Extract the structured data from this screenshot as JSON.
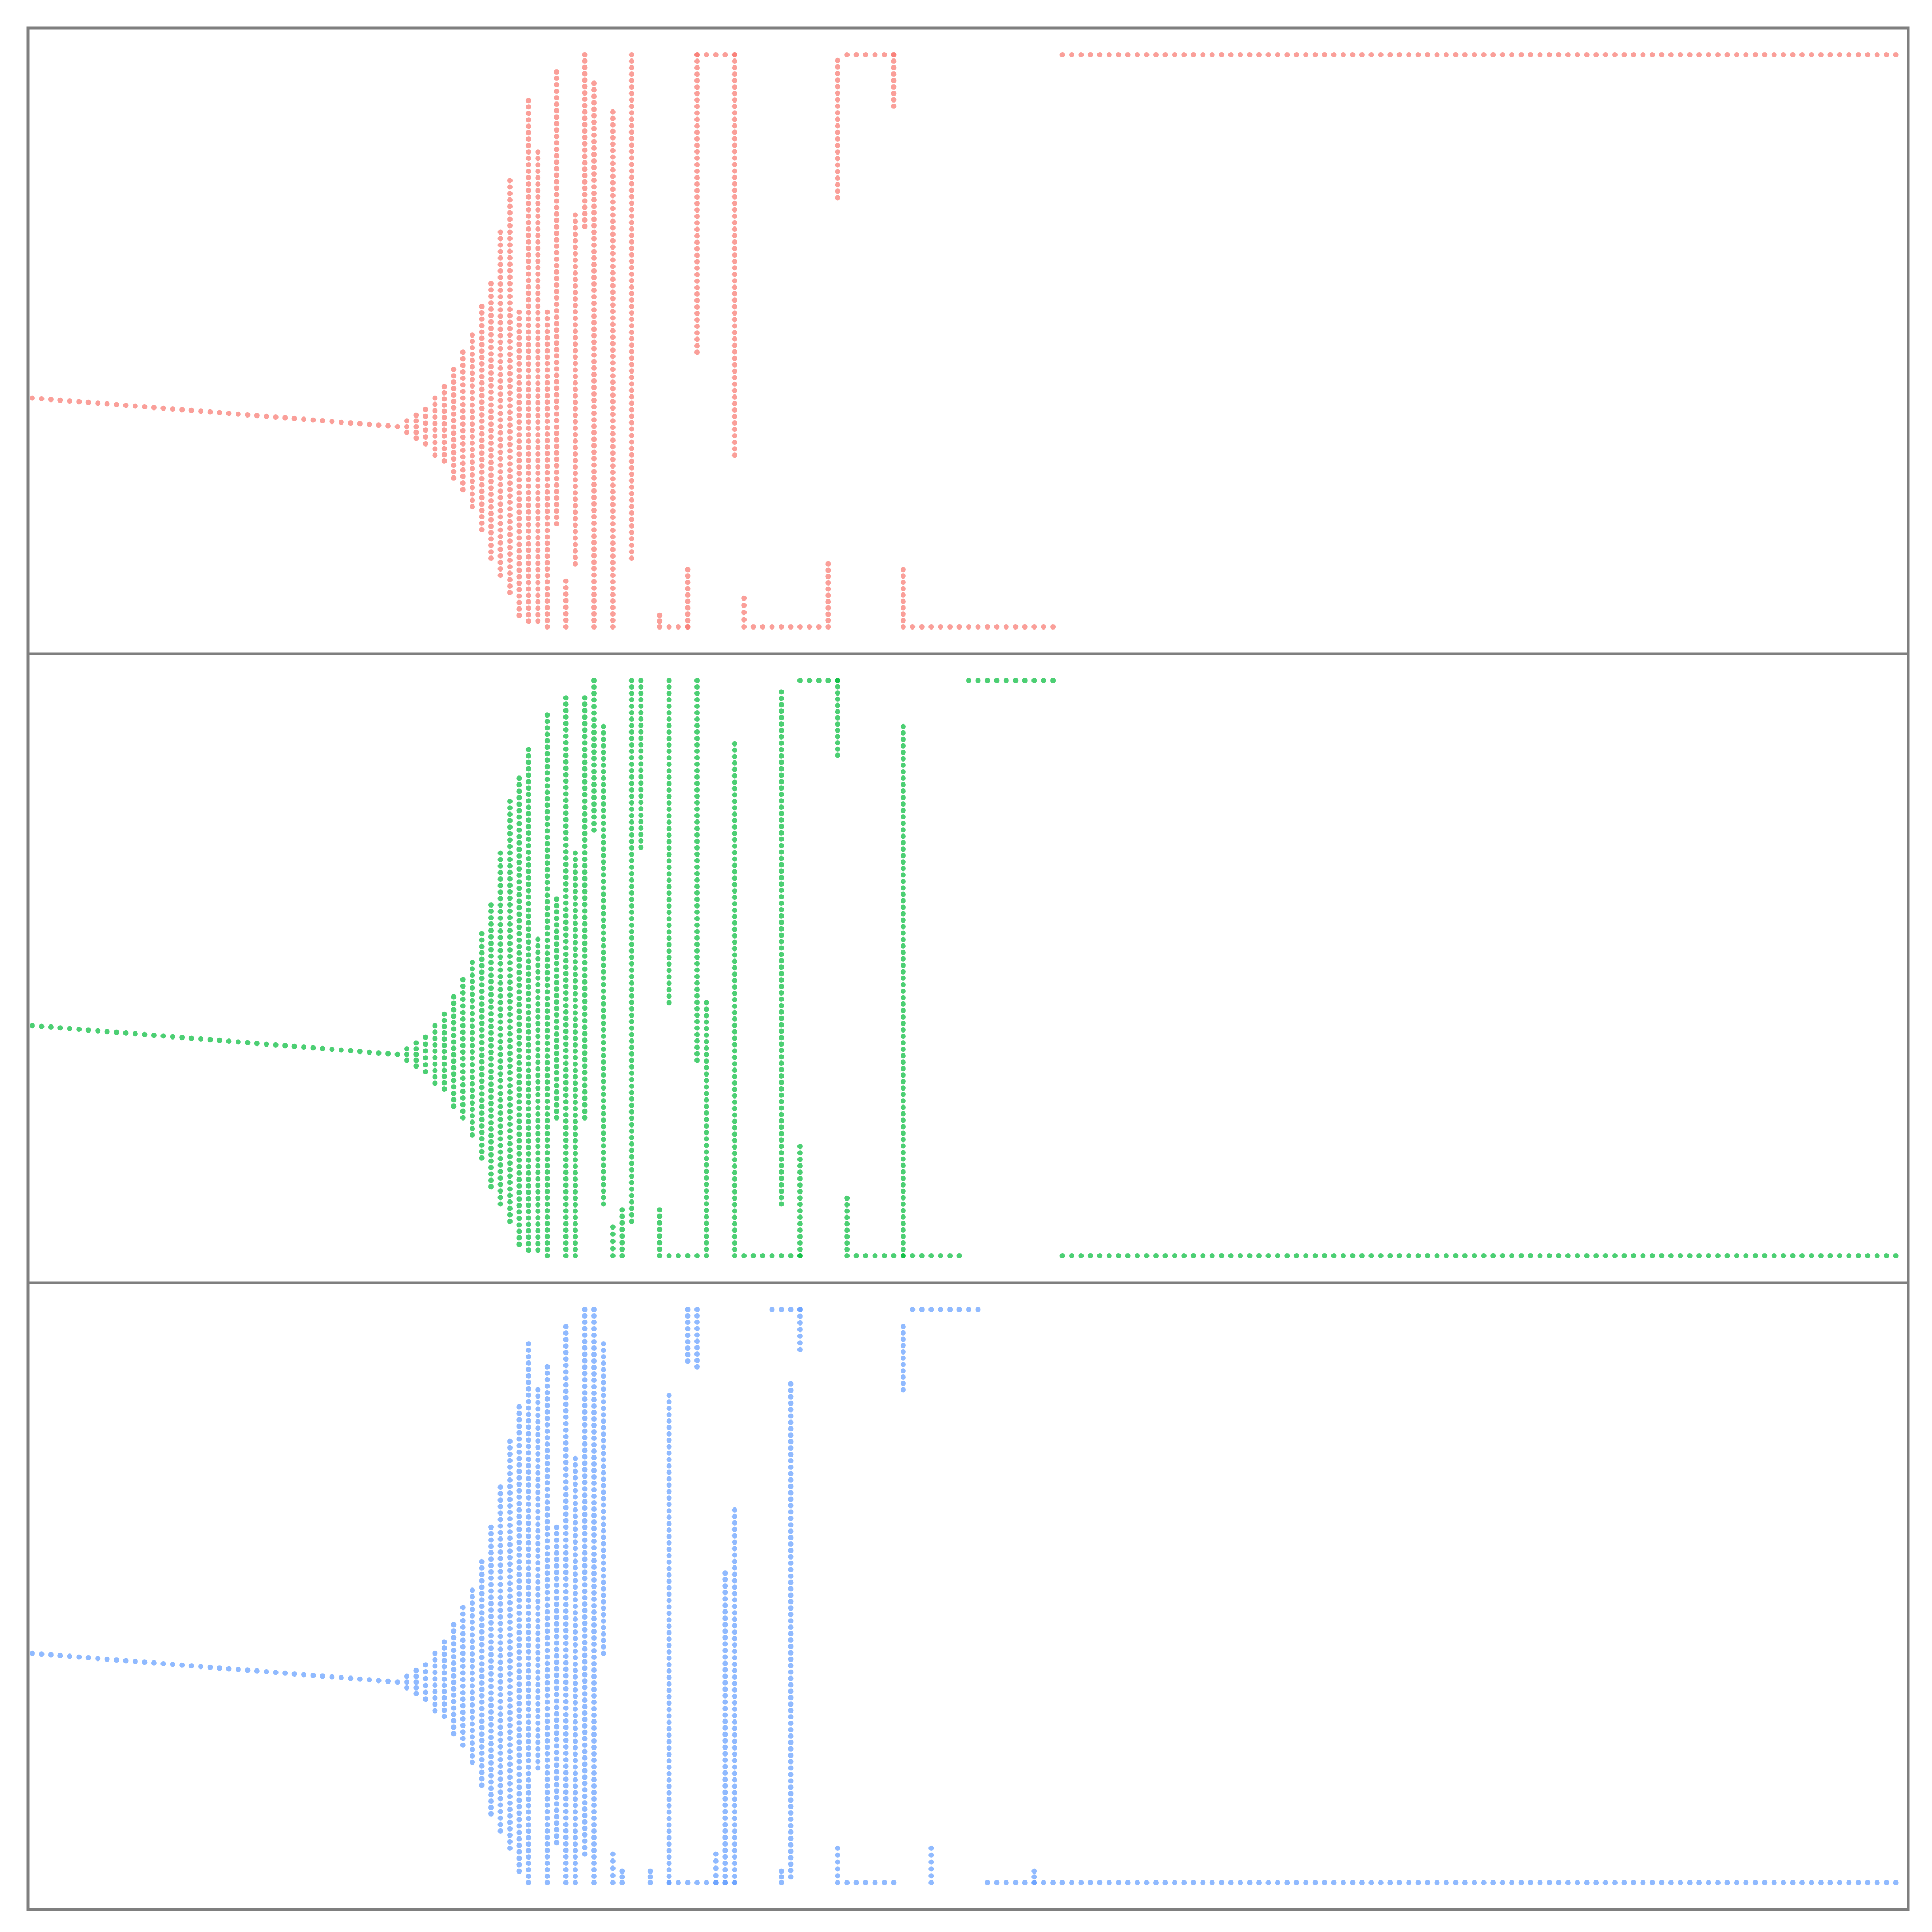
{
  "chart_data": [
    {
      "type": "scatter",
      "panel": "top",
      "color": "#F8766D",
      "title": "",
      "xlabel": "",
      "ylabel": "",
      "xlim": [
        0,
        200
      ],
      "ylim": [
        0,
        1
      ],
      "grid": false,
      "legend": "none",
      "tail": {
        "x_start": 0,
        "x_end": 39,
        "y_start": 0.4,
        "y_end": 0.35
      },
      "columns": [
        {
          "x": 40,
          "lo": 0.34,
          "hi": 0.36
        },
        {
          "x": 41,
          "lo": 0.33,
          "hi": 0.37
        },
        {
          "x": 42,
          "lo": 0.32,
          "hi": 0.38
        },
        {
          "x": 43,
          "lo": 0.3,
          "hi": 0.4
        },
        {
          "x": 44,
          "lo": 0.29,
          "hi": 0.42
        },
        {
          "x": 45,
          "lo": 0.26,
          "hi": 0.45
        },
        {
          "x": 46,
          "lo": 0.24,
          "hi": 0.48
        },
        {
          "x": 47,
          "lo": 0.21,
          "hi": 0.51
        },
        {
          "x": 48,
          "lo": 0.17,
          "hi": 0.56
        },
        {
          "x": 49,
          "lo": 0.12,
          "hi": 0.6
        },
        {
          "x": 50,
          "lo": 0.09,
          "hi": 0.69
        },
        {
          "x": 51,
          "lo": 0.06,
          "hi": 0.78
        },
        {
          "x": 52,
          "lo": 0.02,
          "hi": 0.55
        },
        {
          "x": 53,
          "lo": 0.01,
          "hi": 0.92
        },
        {
          "x": 54,
          "lo": 0.01,
          "hi": 0.83
        },
        {
          "x": 55,
          "lo": 0.0,
          "hi": 0.55
        },
        {
          "x": 56,
          "lo": 0.18,
          "hi": 0.97
        },
        {
          "x": 57,
          "lo": 0.0,
          "hi": 0.08
        },
        {
          "x": 58,
          "lo": 0.11,
          "hi": 0.72
        },
        {
          "x": 59,
          "lo": 0.7,
          "hi": 1.0
        },
        {
          "x": 60,
          "lo": 0.0,
          "hi": 0.95
        },
        {
          "x": 62,
          "lo": 0.0,
          "hi": 0.9
        },
        {
          "x": 64,
          "lo": 0.12,
          "hi": 1.0
        },
        {
          "x": 67,
          "lo": 0.0,
          "hi": 0.02
        },
        {
          "x": 70,
          "lo": 0.0,
          "hi": 0.1
        },
        {
          "x": 71,
          "lo": 0.48,
          "hi": 1.0
        },
        {
          "x": 75,
          "lo": 0.3,
          "hi": 1.0
        },
        {
          "x": 76,
          "lo": 0.0,
          "hi": 0.05
        },
        {
          "x": 85,
          "lo": 0.0,
          "hi": 0.11
        },
        {
          "x": 86,
          "lo": 0.75,
          "hi": 0.99
        },
        {
          "x": 92,
          "lo": 0.91,
          "hi": 1.0
        },
        {
          "x": 93,
          "lo": 0.0,
          "hi": 0.1
        }
      ],
      "flat": [
        {
          "x_start": 68,
          "x_end": 70,
          "y": 0.0
        },
        {
          "x_start": 71,
          "x_end": 75,
          "y": 1.0
        },
        {
          "x_start": 77,
          "x_end": 84,
          "y": 0.0
        },
        {
          "x_start": 87,
          "x_end": 92,
          "y": 1.0
        },
        {
          "x_start": 94,
          "x_end": 109,
          "y": 0.0
        },
        {
          "x_start": 110,
          "x_end": 199,
          "y": 1.0
        }
      ]
    },
    {
      "type": "scatter",
      "panel": "middle",
      "color": "#00BA38",
      "title": "",
      "xlabel": "",
      "ylabel": "",
      "xlim": [
        0,
        200
      ],
      "ylim": [
        0,
        1
      ],
      "grid": false,
      "legend": "none",
      "tail": {
        "x_start": 0,
        "x_end": 39,
        "y_start": 0.4,
        "y_end": 0.35
      },
      "columns": [
        {
          "x": 40,
          "lo": 0.34,
          "hi": 0.36
        },
        {
          "x": 41,
          "lo": 0.33,
          "hi": 0.37
        },
        {
          "x": 42,
          "lo": 0.32,
          "hi": 0.38
        },
        {
          "x": 43,
          "lo": 0.3,
          "hi": 0.4
        },
        {
          "x": 44,
          "lo": 0.29,
          "hi": 0.42
        },
        {
          "x": 45,
          "lo": 0.26,
          "hi": 0.45
        },
        {
          "x": 46,
          "lo": 0.24,
          "hi": 0.48
        },
        {
          "x": 47,
          "lo": 0.21,
          "hi": 0.51
        },
        {
          "x": 48,
          "lo": 0.17,
          "hi": 0.56
        },
        {
          "x": 49,
          "lo": 0.12,
          "hi": 0.61
        },
        {
          "x": 50,
          "lo": 0.09,
          "hi": 0.7
        },
        {
          "x": 51,
          "lo": 0.06,
          "hi": 0.79
        },
        {
          "x": 52,
          "lo": 0.02,
          "hi": 0.83
        },
        {
          "x": 53,
          "lo": 0.01,
          "hi": 0.88
        },
        {
          "x": 54,
          "lo": 0.01,
          "hi": 0.55
        },
        {
          "x": 55,
          "lo": 0.0,
          "hi": 0.94
        },
        {
          "x": 56,
          "lo": 0.24,
          "hi": 0.62
        },
        {
          "x": 57,
          "lo": 0.0,
          "hi": 0.97
        },
        {
          "x": 58,
          "lo": 0.0,
          "hi": 0.7
        },
        {
          "x": 59,
          "lo": 0.24,
          "hi": 0.97
        },
        {
          "x": 60,
          "lo": 0.74,
          "hi": 1.0
        },
        {
          "x": 61,
          "lo": 0.09,
          "hi": 0.92
        },
        {
          "x": 62,
          "lo": 0.0,
          "hi": 0.05
        },
        {
          "x": 63,
          "lo": 0.0,
          "hi": 0.08
        },
        {
          "x": 64,
          "lo": 0.06,
          "hi": 1.0
        },
        {
          "x": 65,
          "lo": 0.71,
          "hi": 1.0
        },
        {
          "x": 67,
          "lo": 0.0,
          "hi": 0.08
        },
        {
          "x": 68,
          "lo": 0.44,
          "hi": 1.0
        },
        {
          "x": 71,
          "lo": 0.34,
          "hi": 1.0
        },
        {
          "x": 72,
          "lo": 0.0,
          "hi": 0.44
        },
        {
          "x": 75,
          "lo": 0.0,
          "hi": 0.89
        },
        {
          "x": 80,
          "lo": 0.09,
          "hi": 0.98
        },
        {
          "x": 82,
          "lo": 0.0,
          "hi": 0.19
        },
        {
          "x": 86,
          "lo": 0.87,
          "hi": 1.0
        },
        {
          "x": 87,
          "lo": 0.0,
          "hi": 0.1
        },
        {
          "x": 93,
          "lo": 0.0,
          "hi": 0.92
        }
      ],
      "flat": [
        {
          "x_start": 68,
          "x_end": 71,
          "y": 0.0
        },
        {
          "x_start": 76,
          "x_end": 82,
          "y": 0.0
        },
        {
          "x_start": 82,
          "x_end": 86,
          "y": 1.0
        },
        {
          "x_start": 88,
          "x_end": 99,
          "y": 0.0
        },
        {
          "x_start": 100,
          "x_end": 109,
          "y": 1.0
        },
        {
          "x_start": 110,
          "x_end": 199,
          "y": 0.0
        }
      ]
    },
    {
      "type": "scatter",
      "panel": "bottom",
      "color": "#619CFF",
      "title": "",
      "xlabel": "",
      "ylabel": "",
      "xlim": [
        0,
        200
      ],
      "ylim": [
        0,
        1
      ],
      "grid": false,
      "legend": "none",
      "tail": {
        "x_start": 0,
        "x_end": 39,
        "y_start": 0.4,
        "y_end": 0.35
      },
      "columns": [
        {
          "x": 40,
          "lo": 0.34,
          "hi": 0.36
        },
        {
          "x": 41,
          "lo": 0.33,
          "hi": 0.37
        },
        {
          "x": 42,
          "lo": 0.32,
          "hi": 0.38
        },
        {
          "x": 43,
          "lo": 0.3,
          "hi": 0.4
        },
        {
          "x": 44,
          "lo": 0.29,
          "hi": 0.42
        },
        {
          "x": 45,
          "lo": 0.26,
          "hi": 0.45
        },
        {
          "x": 46,
          "lo": 0.24,
          "hi": 0.48
        },
        {
          "x": 47,
          "lo": 0.21,
          "hi": 0.51
        },
        {
          "x": 48,
          "lo": 0.17,
          "hi": 0.56
        },
        {
          "x": 49,
          "lo": 0.12,
          "hi": 0.62
        },
        {
          "x": 50,
          "lo": 0.09,
          "hi": 0.69
        },
        {
          "x": 51,
          "lo": 0.06,
          "hi": 0.77
        },
        {
          "x": 52,
          "lo": 0.02,
          "hi": 0.83
        },
        {
          "x": 53,
          "lo": 0.0,
          "hi": 0.94
        },
        {
          "x": 54,
          "lo": 0.2,
          "hi": 0.86
        },
        {
          "x": 55,
          "lo": 0.0,
          "hi": 0.9
        },
        {
          "x": 56,
          "lo": 0.07,
          "hi": 0.62
        },
        {
          "x": 57,
          "lo": 0.0,
          "hi": 0.97
        },
        {
          "x": 58,
          "lo": 0.0,
          "hi": 0.74
        },
        {
          "x": 59,
          "lo": 0.05,
          "hi": 1.0
        },
        {
          "x": 60,
          "lo": 0.0,
          "hi": 1.0
        },
        {
          "x": 61,
          "lo": 0.4,
          "hi": 0.94
        },
        {
          "x": 62,
          "lo": 0.0,
          "hi": 0.05
        },
        {
          "x": 63,
          "lo": 0.0,
          "hi": 0.02
        },
        {
          "x": 66,
          "lo": 0.0,
          "hi": 0.02
        },
        {
          "x": 68,
          "lo": 0.0,
          "hi": 0.85
        },
        {
          "x": 70,
          "lo": 0.91,
          "hi": 1.0
        },
        {
          "x": 71,
          "lo": 0.9,
          "hi": 1.0
        },
        {
          "x": 73,
          "lo": 0.0,
          "hi": 0.05
        },
        {
          "x": 74,
          "lo": 0.0,
          "hi": 0.54
        },
        {
          "x": 75,
          "lo": 0.0,
          "hi": 0.65
        },
        {
          "x": 80,
          "lo": 0.0,
          "hi": 0.02
        },
        {
          "x": 81,
          "lo": 0.01,
          "hi": 0.87
        },
        {
          "x": 82,
          "lo": 0.93,
          "hi": 1.0
        },
        {
          "x": 86,
          "lo": 0.0,
          "hi": 0.06
        },
        {
          "x": 93,
          "lo": 0.86,
          "hi": 0.97
        },
        {
          "x": 96,
          "lo": 0.0,
          "hi": 0.06
        },
        {
          "x": 107,
          "lo": 0.0,
          "hi": 0.02
        }
      ],
      "flat": [
        {
          "x_start": 68,
          "x_end": 69,
          "y": 0.0
        },
        {
          "x_start": 70,
          "x_end": 75,
          "y": 0.0
        },
        {
          "x_start": 79,
          "x_end": 82,
          "y": 1.0
        },
        {
          "x_start": 87,
          "x_end": 92,
          "y": 0.0
        },
        {
          "x_start": 94,
          "x_end": 101,
          "y": 1.0
        },
        {
          "x_start": 102,
          "x_end": 199,
          "y": 0.0
        }
      ]
    }
  ]
}
